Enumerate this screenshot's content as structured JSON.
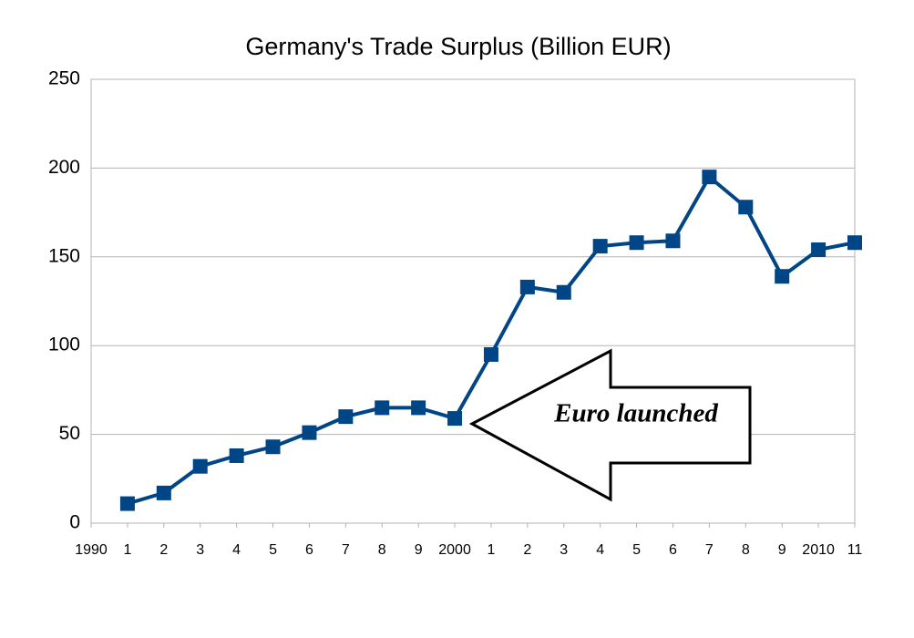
{
  "chart_data": {
    "type": "line",
    "title": "Germany's Trade Surplus (Billion EUR)",
    "categories": [
      "1990",
      "1",
      "2",
      "3",
      "4",
      "5",
      "6",
      "7",
      "8",
      "9",
      "2000",
      "1",
      "2",
      "3",
      "4",
      "5",
      "6",
      "7",
      "8",
      "9",
      "2010",
      "11"
    ],
    "series": [
      {
        "name": "Trade surplus",
        "color": "#004586",
        "values": [
          null,
          11,
          17,
          32,
          38,
          43,
          51,
          60,
          65,
          65,
          59,
          95,
          133,
          130,
          156,
          158,
          159,
          195,
          178,
          139,
          154,
          158
        ]
      }
    ],
    "ylim": [
      0,
      250
    ],
    "yticks": [
      0,
      50,
      100,
      150,
      200,
      250
    ],
    "grid": true,
    "annotation": "Euro launched"
  }
}
